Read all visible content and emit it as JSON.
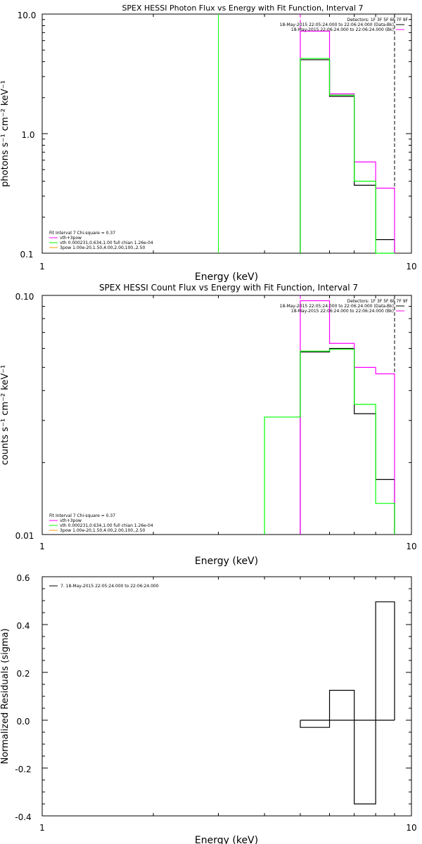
{
  "colors": {
    "data": "#000000",
    "bk": "#000000",
    "total_model": "#ff00ff",
    "vth": "#00ff00",
    "3pow": "#ff9900",
    "axis": "#000000",
    "background": "#ffffff"
  },
  "chart_data": [
    {
      "type": "line",
      "step": true,
      "title": "SPEX HESSI Photon Flux vs Energy with Fit Function, Interval 7",
      "xlabel": "Energy (keV)",
      "ylabel": "photons s⁻¹ cm⁻² keV⁻¹",
      "xscale": "log",
      "yscale": "log",
      "xlim": [
        1,
        10
      ],
      "ylim": [
        0.1,
        10
      ],
      "x_ticks": [
        "1",
        "10"
      ],
      "y_ticks": [
        "0.1",
        "1.0",
        "10.0"
      ],
      "legend_top": {
        "detectors": "Detectors: 1F 3F 5F 6F 7F 9F",
        "line1": "18-May-2015 22:05:24.000 to 22:06:24.000 (Data-Bk)",
        "line2": "18-May-2015 22:06:24.000 to 22:06:24.000 (Bk)"
      },
      "legend_bottom": {
        "header": "Fit Interval 7   Chi-square = 0.37",
        "items": [
          {
            "label": "vth+3pow",
            "color": "#ff00ff"
          },
          {
            "label": "vth 0.000231,0.634,1.00  full chian 1.26e-04",
            "color": "#00ff00"
          },
          {
            "label": "3pow 1.00e-20,1.50,4.00,2.00,100.,2.50",
            "color": "#ff9900"
          }
        ]
      },
      "series": [
        {
          "name": "Data-Bk",
          "color": "#000000",
          "edges": [
            5.0,
            6.0,
            7.0,
            8.0,
            9.0
          ],
          "values": [
            4.15,
            2.05,
            0.37,
            0.13
          ]
        },
        {
          "name": "vth+3pow",
          "color": "#ff00ff",
          "edges": [
            5.0,
            6.0,
            7.0,
            8.0,
            9.0
          ],
          "values": [
            7.2,
            2.15,
            0.58,
            0.35
          ]
        },
        {
          "name": "vth",
          "color": "#00ff00",
          "edges": [
            5.0,
            6.0,
            7.0,
            8.0,
            9.0
          ],
          "values": [
            4.25,
            2.1,
            0.4,
            0.1
          ]
        }
      ],
      "vlines": [
        {
          "x": 3.0,
          "color": "#00ff00",
          "style": "solid"
        },
        {
          "x": 5.0,
          "color": "#ff00ff",
          "style": "dashed"
        },
        {
          "x": 9.0,
          "color": "#000000",
          "style": "dashed"
        }
      ]
    },
    {
      "type": "line",
      "step": true,
      "title": "SPEX HESSI Count Flux vs Energy with Fit Function, Interval 7",
      "xlabel": "Energy (keV)",
      "ylabel": "counts s⁻¹ cm⁻² keV⁻¹",
      "xscale": "log",
      "yscale": "log",
      "xlim": [
        1,
        10
      ],
      "ylim": [
        0.01,
        0.1
      ],
      "x_ticks": [
        "1",
        "10"
      ],
      "y_ticks": [
        "0.01",
        "0.10"
      ],
      "legend_top": {
        "detectors": "Detectors: 1F 3F 5F 6F 7F 9F",
        "line1": "18-May-2015 22:05:24.000 to 22:06:24.000 (Data-Bk)",
        "line2": "18-May-2015 22:06:24.000 to 22:06:24.000 (Bk)"
      },
      "legend_bottom": {
        "header": "Fit Interval 7   Chi-square = 0.37",
        "items": [
          {
            "label": "vth+3pow",
            "color": "#ff00ff"
          },
          {
            "label": "vth 0.000231,0.634,1.00  full chian 1.26e-04",
            "color": "#00ff00"
          },
          {
            "label": "3pow 1.00e-20,1.50,4.00,2.00,100.,2.50",
            "color": "#ff9900"
          }
        ]
      },
      "series": [
        {
          "name": "Data-Bk",
          "color": "#000000",
          "edges": [
            5.0,
            6.0,
            7.0,
            8.0,
            9.0
          ],
          "values": [
            0.058,
            0.06,
            0.032,
            0.017
          ]
        },
        {
          "name": "vth+3pow",
          "color": "#ff00ff",
          "edges": [
            5.0,
            6.0,
            7.0,
            8.0,
            9.0
          ],
          "values": [
            0.095,
            0.063,
            0.05,
            0.047
          ]
        },
        {
          "name": "vth",
          "color": "#00ff00",
          "edges": [
            4.0,
            5.0,
            6.0,
            7.0,
            8.0,
            9.0
          ],
          "values": [
            0.031,
            0.0585,
            0.0595,
            0.035,
            0.0135
          ]
        }
      ],
      "vlines": [
        {
          "x": 5.0,
          "color": "#ff00ff",
          "style": "dashed"
        },
        {
          "x": 9.0,
          "color": "#000000",
          "style": "dashed"
        }
      ]
    },
    {
      "type": "line",
      "step": true,
      "title": "",
      "xlabel": "Energy (keV)",
      "ylabel": "Normalized Residuals (sigma)",
      "xscale": "log",
      "yscale": "linear",
      "xlim": [
        1,
        10
      ],
      "ylim": [
        -0.4,
        0.6
      ],
      "x_ticks": [
        "1",
        "10"
      ],
      "y_ticks": [
        "-0.4",
        "-0.2",
        "0.0",
        "0.2",
        "0.4",
        "0.6"
      ],
      "legend": "7. 18-May-2015 22:05:24.000 to 22:06:24.000",
      "series": [
        {
          "name": "7. 18-May-2015 22:05:24.000 to 22:06:24.000",
          "color": "#000000",
          "edges": [
            5.0,
            6.0,
            7.0,
            8.0,
            9.0
          ],
          "values": [
            -0.03,
            0.125,
            -0.35,
            0.495
          ]
        }
      ]
    }
  ]
}
